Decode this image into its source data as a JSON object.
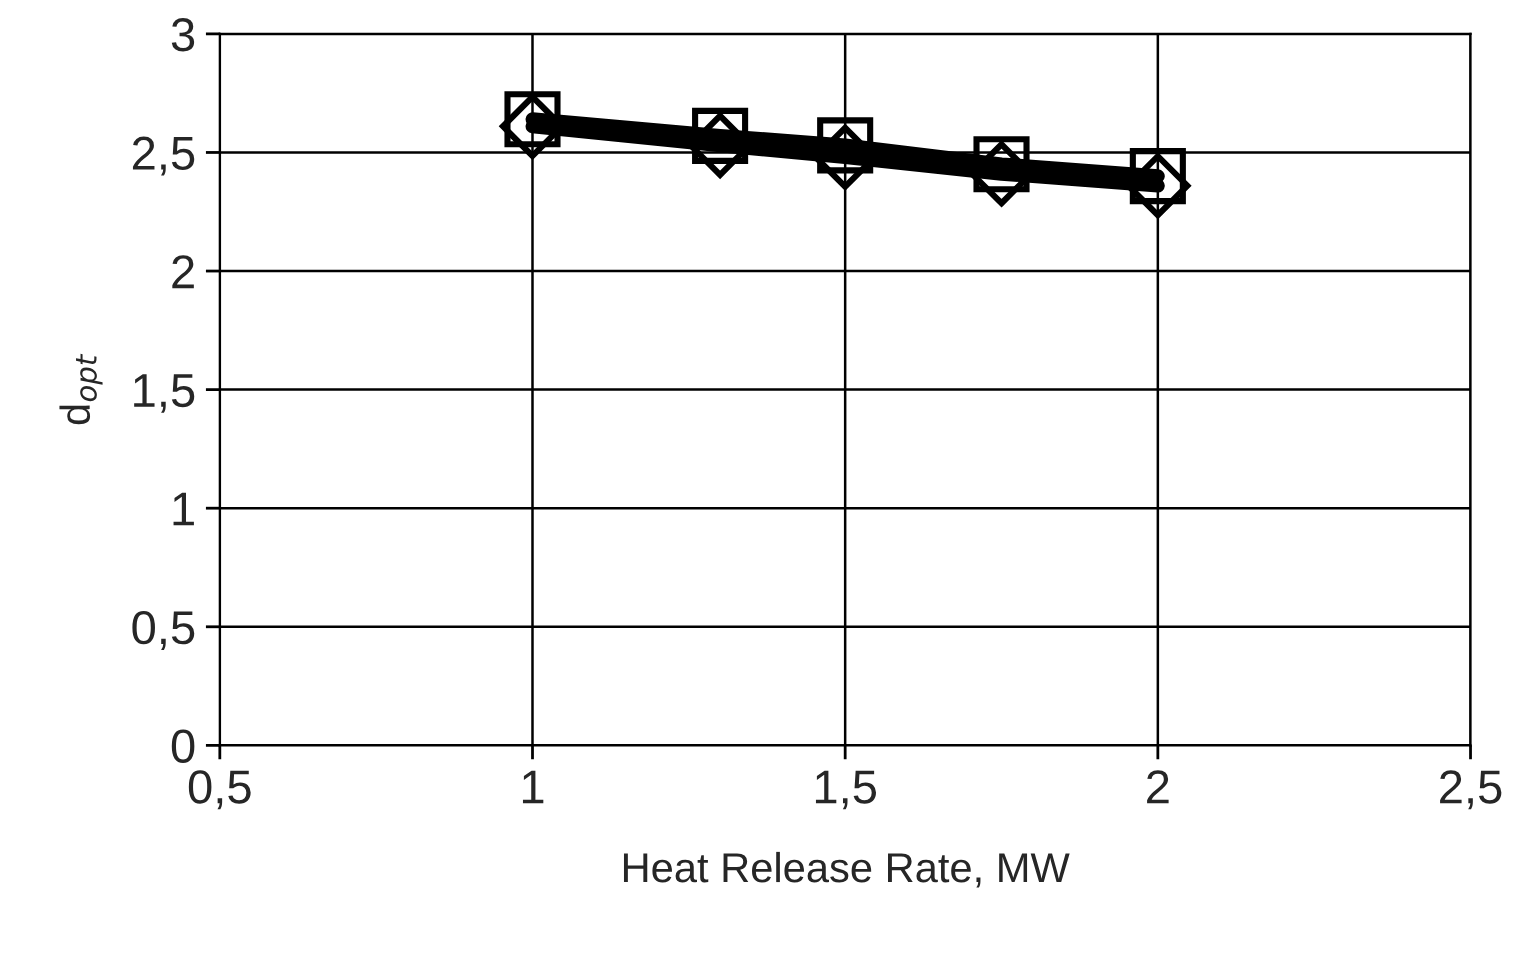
{
  "chart_data": {
    "type": "line",
    "xlabel": "Heat Release Rate, MW",
    "ylabel": "d$_{opt}$",
    "x": [
      1,
      1.3,
      1.5,
      1.75,
      2
    ],
    "series": [
      {
        "color": "#000000",
        "marker": "square",
        "values": [
          2.64,
          2.57,
          2.53,
          2.45,
          2.4
        ]
      },
      {
        "color": "#000000",
        "marker": "diamond",
        "values": [
          2.61,
          2.53,
          2.48,
          2.41,
          2.36
        ]
      }
    ],
    "xlim": [
      0.5,
      2.5
    ],
    "xticks": [
      {
        "value": 0.5,
        "label": "0,5"
      },
      1,
      {
        "value": 1.5,
        "label": "1,5"
      },
      2,
      {
        "value": 2.5,
        "label": "2,5"
      }
    ],
    "ylim": [
      0,
      3
    ],
    "yticks": [
      0,
      {
        "value": 0.5,
        "label": "0,5"
      },
      1,
      {
        "value": 1.5,
        "label": "1,5"
      },
      2,
      {
        "value": 2.5,
        "label": "2,5"
      },
      3
    ],
    "grid": true,
    "line_style": "solid"
  }
}
